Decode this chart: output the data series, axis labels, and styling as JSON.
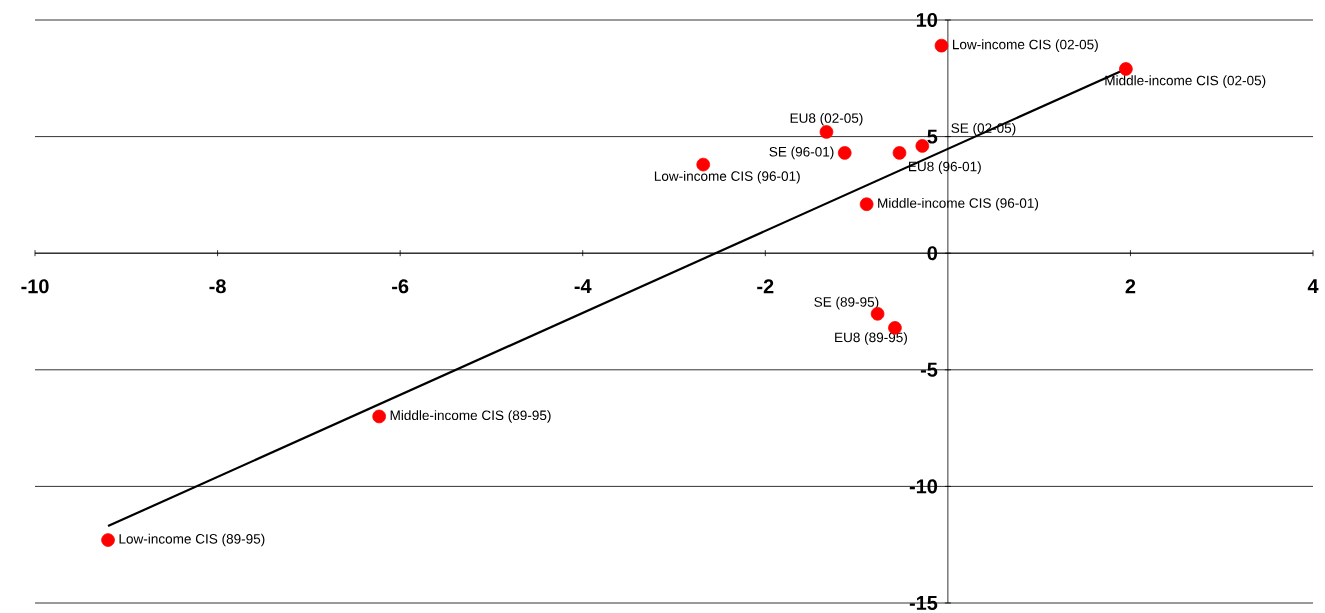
{
  "chart_data": {
    "type": "scatter",
    "xlim": [
      -10,
      4
    ],
    "ylim": [
      -15,
      10
    ],
    "xticks": [
      -10,
      -8,
      -6,
      -4,
      -2,
      2,
      4
    ],
    "yticks": [
      -15,
      -10,
      -5,
      0,
      5,
      10
    ],
    "grid": "y",
    "series": [
      {
        "marker": "circle",
        "color": "#ff0000",
        "x": [
          -0.07,
          1.95,
          -1.33,
          -0.28,
          -1.13,
          -0.53,
          -2.68,
          -0.89,
          -0.77,
          -0.58,
          -6.23,
          -9.2
        ],
        "values": [
          8.9,
          7.9,
          5.2,
          4.6,
          4.3,
          4.3,
          3.8,
          2.1,
          -2.6,
          -3.2,
          -7.0,
          -12.3
        ]
      },
      {
        "type": "line",
        "color": "#000000",
        "line_style": "solid",
        "x": [
          -9.2,
          1.95
        ],
        "values": [
          -11.7,
          7.9
        ]
      }
    ],
    "annotations": [
      {
        "text": "Low-income CIS (02-05)",
        "x": -0.07,
        "y": 8.9
      },
      {
        "text": "Middle-income CIS (02-05)",
        "x": 1.95,
        "y": 7.9
      },
      {
        "text": "EU8 (02-05)",
        "x": -1.33,
        "y": 5.2
      },
      {
        "text": "SE (02-05)",
        "x": -0.28,
        "y": 4.6
      },
      {
        "text": "SE (96-01)",
        "x": -1.13,
        "y": 4.3
      },
      {
        "text": "EU8 (96-01)",
        "x": -0.53,
        "y": 4.3
      },
      {
        "text": "Low-income CIS (96-01)",
        "x": -2.68,
        "y": 3.8
      },
      {
        "text": "Middle-income CIS (96-01)",
        "x": -0.89,
        "y": 2.1
      },
      {
        "text": "SE (89-95)",
        "x": -0.77,
        "y": -2.6
      },
      {
        "text": "EU8 (89-95)",
        "x": -0.58,
        "y": -3.2
      },
      {
        "text": "Middle-income CIS (89-95)",
        "x": -6.23,
        "y": -7.0
      },
      {
        "text": "Low-income CIS (89-95)",
        "x": -9.2,
        "y": -12.3
      }
    ]
  }
}
